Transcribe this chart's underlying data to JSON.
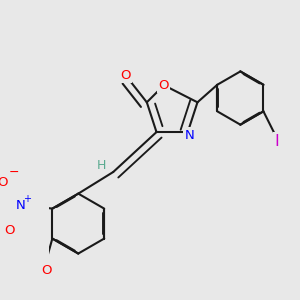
{
  "bg_color": "#e8e8e8",
  "bond_color": "#1a1a1a",
  "bond_width": 1.5,
  "dbo": 0.012,
  "atom_colors": {
    "O": "#ff0000",
    "N": "#0000ff",
    "I": "#cc00cc",
    "H": "#5aaa90",
    "C": "#1a1a1a"
  },
  "fs": 9.5
}
